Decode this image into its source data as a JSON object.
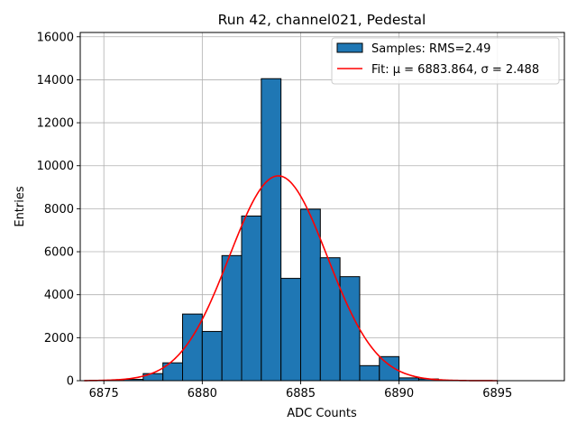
{
  "chart_data": {
    "type": "bar",
    "title": "Run 42, channel021, Pedestal",
    "xlabel": "ADC Counts",
    "ylabel": "Entries",
    "xlim": [
      6873.8,
      6898.4
    ],
    "ylim": [
      0,
      16200
    ],
    "x_ticks": [
      6875,
      6880,
      6885,
      6890,
      6895
    ],
    "y_ticks": [
      0,
      2000,
      4000,
      6000,
      8000,
      10000,
      12000,
      14000,
      16000
    ],
    "grid": true,
    "legend_position": "top-right",
    "bin_width": 1,
    "histogram": {
      "name": "Samples: RMS=2.49",
      "color": "#1f77b4",
      "bin_left_edges": [
        6875,
        6876,
        6877,
        6878,
        6879,
        6880,
        6881,
        6882,
        6883,
        6884,
        6885,
        6886,
        6887,
        6888,
        6889,
        6890,
        6891,
        6892,
        6893,
        6894,
        6895,
        6896
      ],
      "counts": [
        10,
        60,
        330,
        830,
        3100,
        2290,
        5820,
        7660,
        14050,
        4760,
        7980,
        5720,
        4840,
        700,
        1120,
        130,
        80,
        10,
        0,
        0,
        0,
        0
      ]
    },
    "fit": {
      "name": "Fit: μ = 6883.864, σ = 2.488",
      "color": "#ff0000",
      "mu": 6883.864,
      "sigma": 2.488,
      "amplitude": 9530,
      "x_range": [
        6874,
        6895
      ]
    }
  }
}
